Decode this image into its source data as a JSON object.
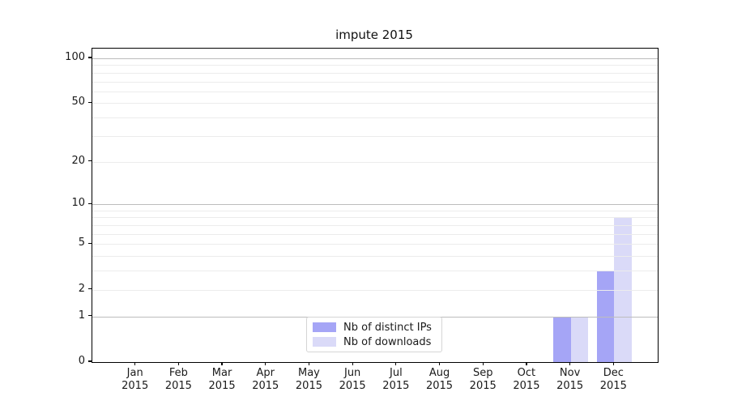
{
  "chart_data": {
    "type": "bar",
    "title": "impute 2015",
    "categories": [
      "Jan",
      "Feb",
      "Mar",
      "Apr",
      "May",
      "Jun",
      "Jul",
      "Aug",
      "Sep",
      "Oct",
      "Nov",
      "Dec"
    ],
    "category_year": "2015",
    "series": [
      {
        "name": "Nb of distinct IPs",
        "color": "#a5a5f6",
        "values": [
          0,
          0,
          0,
          0,
          0,
          0,
          0,
          0,
          0,
          0,
          1,
          3
        ]
      },
      {
        "name": "Nb of downloads",
        "color": "#dadaf8",
        "values": [
          0,
          0,
          0,
          0,
          0,
          0,
          0,
          0,
          0,
          0,
          1,
          8
        ]
      }
    ],
    "xlabel": "",
    "ylabel": "",
    "yscale": "log1p",
    "ylim": [
      0,
      116
    ],
    "ytick_values": [
      0,
      1,
      2,
      5,
      10,
      20,
      50,
      100
    ],
    "major_gridlines": [
      1,
      10,
      100
    ],
    "minor_gridlines": [
      2,
      3,
      4,
      5,
      6,
      7,
      8,
      9,
      20,
      30,
      40,
      50,
      60,
      70,
      80,
      90
    ],
    "grid": true,
    "grid_over_bars": true,
    "legend_position": "lower center",
    "colors": {
      "bar_distinct_ips": "#a5a5f6",
      "bar_downloads": "#dadaf8",
      "major_grid": "#bdbdbd",
      "minor_grid": "#ececec",
      "spine": "#000000",
      "text": "#1a1a1a",
      "legend_border": "#d5d5d5"
    }
  }
}
